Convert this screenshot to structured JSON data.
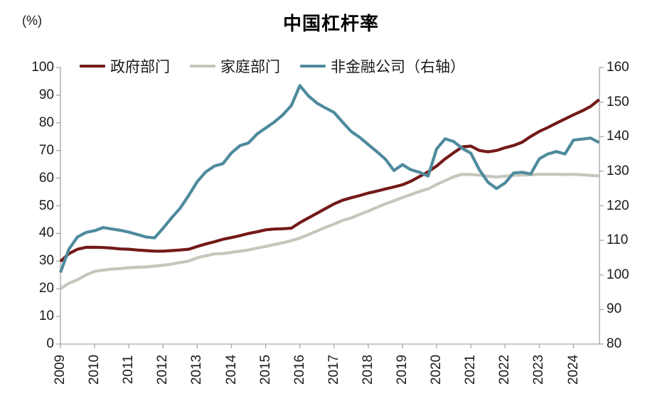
{
  "title": "中国杠杆率",
  "left_axis_unit_label": "(%)",
  "colors": {
    "government": "#731a19",
    "household": "#c5c7bc",
    "nfc": "#4e8a9d",
    "axis": "#a6a6a6",
    "text": "#1a1a1a"
  },
  "legend": [
    {
      "label": "政府部门"
    },
    {
      "label": "家庭部门"
    },
    {
      "label": "非金融公司（右轴）"
    }
  ],
  "chart_data": {
    "type": "line",
    "title": "中国杠杆率",
    "x_frequency": "quarterly",
    "x_start": "2009Q1",
    "x_end": "2024Q4",
    "x_tick_labels": [
      "2009",
      "2010",
      "2011",
      "2012",
      "2013",
      "2014",
      "2015",
      "2016",
      "2017",
      "2018",
      "2019",
      "2020",
      "2021",
      "2022",
      "2023",
      "2024"
    ],
    "left_axis": {
      "label": "(%)",
      "min": 0,
      "max": 100,
      "step": 10,
      "tick_labels": [
        "0",
        "10",
        "20",
        "30",
        "40",
        "50",
        "60",
        "70",
        "80",
        "90",
        "100"
      ]
    },
    "right_axis": {
      "min": 80,
      "max": 160,
      "step": 10,
      "tick_labels": [
        "80",
        "90",
        "100",
        "110",
        "120",
        "130",
        "140",
        "150",
        "160"
      ]
    },
    "legend_position": "top",
    "grid": false,
    "series": [
      {
        "key": "government",
        "name": "政府部门",
        "axis": "left",
        "color": "#731a19",
        "values": [
          29.9,
          32.7,
          34.3,
          35.0,
          35.0,
          34.9,
          34.7,
          34.4,
          34.3,
          34.0,
          33.8,
          33.6,
          33.6,
          33.8,
          34.0,
          34.3,
          35.3,
          36.2,
          37.0,
          37.9,
          38.5,
          39.2,
          40.0,
          40.6,
          41.3,
          41.6,
          41.7,
          41.9,
          43.9,
          45.6,
          47.3,
          49.0,
          50.7,
          52.0,
          52.9,
          53.7,
          54.6,
          55.3,
          56.1,
          56.8,
          57.6,
          58.9,
          60.6,
          62.3,
          64.4,
          67.0,
          69.2,
          71.3,
          71.6,
          70.0,
          69.5,
          70.0,
          71.0,
          71.8,
          73.0,
          75.1,
          76.9,
          78.3,
          79.9,
          81.4,
          82.9,
          84.3,
          85.9,
          88.4
        ]
      },
      {
        "key": "household",
        "name": "家庭部门",
        "axis": "left",
        "color": "#c5c7bc",
        "values": [
          20.0,
          22.0,
          23.3,
          25.0,
          26.3,
          26.7,
          27.1,
          27.3,
          27.6,
          27.8,
          27.9,
          28.2,
          28.5,
          28.9,
          29.5,
          30.0,
          31.2,
          31.9,
          32.6,
          32.7,
          33.2,
          33.6,
          34.0,
          34.7,
          35.3,
          36.0,
          36.6,
          37.4,
          38.3,
          39.6,
          40.9,
          42.2,
          43.4,
          44.7,
          45.6,
          46.9,
          48.1,
          49.4,
          50.7,
          51.8,
          53.0,
          54.1,
          55.2,
          56.1,
          57.7,
          59.1,
          60.5,
          61.4,
          61.3,
          61.1,
          60.7,
          60.4,
          60.7,
          61.0,
          61.1,
          61.2,
          61.4,
          61.4,
          61.4,
          61.3,
          61.4,
          61.2,
          61.0,
          60.8
        ]
      },
      {
        "key": "nfc",
        "name": "非金融公司（右轴）",
        "axis": "right",
        "color": "#4e8a9d",
        "values": [
          100.7,
          107.5,
          111.0,
          112.3,
          112.8,
          113.7,
          113.3,
          112.9,
          112.4,
          111.7,
          111.0,
          110.7,
          113.5,
          116.5,
          119.3,
          123.0,
          127.0,
          129.8,
          131.5,
          132.2,
          135.3,
          137.4,
          138.2,
          140.8,
          142.5,
          144.2,
          146.3,
          149.0,
          154.8,
          151.8,
          149.7,
          148.3,
          147.0,
          144.2,
          141.5,
          139.8,
          137.7,
          135.7,
          133.5,
          130.2,
          131.9,
          130.4,
          129.7,
          128.6,
          136.5,
          139.4,
          138.6,
          136.6,
          135.2,
          130.4,
          126.8,
          125.0,
          126.6,
          129.5,
          129.7,
          129.2,
          133.6,
          135.0,
          135.7,
          135.0,
          139.0,
          139.3,
          139.6,
          138.3
        ]
      }
    ]
  }
}
